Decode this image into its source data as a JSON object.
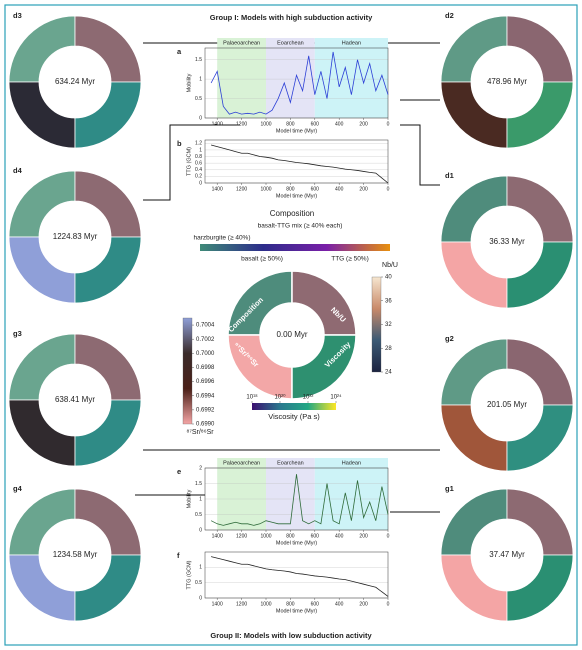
{
  "title_top": "Group I: Models with high subduction activity",
  "title_bottom": "Group II: Models with low subduction activity",
  "rings": [
    {
      "label": "d3",
      "time": "634.24 Myr",
      "colors": [
        "#6aa58f",
        "#8d6a72",
        "#2b2a35",
        "#2f8b86"
      ]
    },
    {
      "label": "d2",
      "time": "478.96 Myr",
      "colors": [
        "#5f9a86",
        "#8a6670",
        "#4a2a22",
        "#3a9a6a"
      ]
    },
    {
      "label": "d4",
      "time": "1224.83 Myr",
      "colors": [
        "#6aa58f",
        "#8d6a72",
        "#8f9fd8",
        "#2f8b86"
      ]
    },
    {
      "label": "d1",
      "time": "36.33 Myr",
      "colors": [
        "#4f8c7c",
        "#8d6a72",
        "#f4a5a5",
        "#2a8f72"
      ]
    },
    {
      "label": "g3",
      "time": "638.41 Myr",
      "colors": [
        "#6aa58f",
        "#8d6a72",
        "#302a2e",
        "#2f8b86"
      ]
    },
    {
      "label": "g2",
      "time": "201.05 Myr",
      "colors": [
        "#5f9a86",
        "#8a6670",
        "#a0563a",
        "#2f8f80"
      ]
    },
    {
      "label": "g4",
      "time": "1234.58 Myr",
      "colors": [
        "#6aa58f",
        "#8d6a72",
        "#8f9fd8",
        "#2f8b86"
      ]
    },
    {
      "label": "g1",
      "time": "37.47 Myr",
      "colors": [
        "#4f8c7c",
        "#8d6a72",
        "#f4a5a5",
        "#2a8f72"
      ]
    }
  ],
  "center": {
    "time": "0.00 Myr",
    "quadrants": [
      "Composition",
      "Nb/U",
      "⁸⁷Sr/⁸⁶Sr",
      "Viscosity"
    ],
    "colors": [
      "#4e8c7c",
      "#8f6a72",
      "#f3a7a7",
      "#2e9070"
    ]
  },
  "composition_legend": {
    "title": "Composition",
    "items": [
      {
        "name": "harzburgite (≥ 40%)",
        "color": "#3f8a78"
      },
      {
        "name": "basalt-TTG mix (≥ 40% each)",
        "color": "#2c2c8a"
      },
      {
        "name": "basalt (≥ 50%)",
        "color": "#7a1fa8"
      },
      {
        "name": "TTG (≥ 50%)",
        "color": "#e8900e"
      }
    ]
  },
  "nbu_colorbar": {
    "label": "Nb/U",
    "lim": [
      24,
      40
    ],
    "ticks": [
      40,
      36,
      32,
      28,
      24
    ],
    "colors": [
      "#1c2340",
      "#3b5a75",
      "#c98a6a",
      "#f6e6d0"
    ]
  },
  "sr_colorbar": {
    "label": "⁸⁷Sr/⁸⁶Sr",
    "lim": [
      0.699,
      0.7005
    ],
    "ticks": [
      0.7004,
      0.7002,
      {
        "value": 0.7,
        "label": "0.7000"
      },
      0.6998,
      0.6996,
      0.6994,
      0.6992,
      {
        "value": 0.699,
        "label": "0.6990"
      }
    ],
    "colors": [
      "#f4a5a5",
      "#4a2018",
      "#3a2b2a",
      "#8f9fd8"
    ]
  },
  "viscosity_colorbar": {
    "label": "Viscosity (Pa s)",
    "log": true,
    "lim": [
      1e+18,
      1e+24
    ],
    "ticks": [
      {
        "value": 1e+18,
        "label": "10¹⁸"
      },
      {
        "value": 1e+20,
        "label": "10²⁰"
      },
      {
        "value": 1e+22,
        "label": "10²²"
      },
      {
        "value": 1e+24,
        "label": "10²⁴"
      }
    ],
    "colors": [
      "#3b0f6f",
      "#2a788e",
      "#22a884",
      "#fde725"
    ]
  },
  "chart_data": [
    {
      "type": "line",
      "panel": "a",
      "ylabel": "Mobility",
      "xlabel": "Model time (Myr)",
      "color": "#2c3fd6",
      "eras": [
        {
          "name": "Palaeoarchean",
          "start": 1400,
          "end": 1000,
          "color": "#d9f2d6"
        },
        {
          "name": "Eoarchean",
          "start": 1000,
          "end": 600,
          "color": "#e4e4f6"
        },
        {
          "name": "Hadean",
          "start": 600,
          "end": 0,
          "color": "#cdf3f7"
        }
      ],
      "x": [
        1450,
        1400,
        1350,
        1300,
        1250,
        1200,
        1150,
        1100,
        1050,
        1000,
        950,
        900,
        850,
        800,
        750,
        700,
        650,
        600,
        550,
        500,
        450,
        400,
        350,
        300,
        250,
        200,
        150,
        100,
        50,
        0
      ],
      "values": [
        0.9,
        1.2,
        0.3,
        0.1,
        0.15,
        0.1,
        0.12,
        0.1,
        0.15,
        0.1,
        0.2,
        0.5,
        0.9,
        0.4,
        1.1,
        0.7,
        1.6,
        0.6,
        1.2,
        0.5,
        1.7,
        0.8,
        1.3,
        0.6,
        1.5,
        0.9,
        1.4,
        0.7,
        1.1,
        0.6
      ],
      "xlim": [
        1500,
        0
      ],
      "xticks": [
        1400,
        1200,
        1000,
        800,
        600,
        400,
        200,
        0
      ],
      "ylim": [
        0,
        1.8
      ],
      "yticks": [
        0,
        0.5,
        1,
        1.5
      ]
    },
    {
      "type": "line",
      "panel": "b",
      "ylabel": "TTG (GCM)",
      "xlabel": "Model time (Myr)",
      "color": "#222222",
      "x": [
        1450,
        1400,
        1350,
        1300,
        1250,
        1200,
        1150,
        1100,
        1050,
        1000,
        950,
        900,
        850,
        800,
        750,
        700,
        650,
        600,
        550,
        500,
        450,
        400,
        350,
        300,
        250,
        200,
        150,
        100,
        50,
        0
      ],
      "values": [
        1.15,
        1.1,
        1.05,
        1.0,
        0.95,
        0.9,
        0.9,
        0.85,
        0.8,
        0.78,
        0.75,
        0.7,
        0.68,
        0.65,
        0.62,
        0.6,
        0.58,
        0.55,
        0.52,
        0.5,
        0.48,
        0.45,
        0.42,
        0.4,
        0.38,
        0.35,
        0.32,
        0.3,
        0.15,
        0
      ],
      "xlim": [
        1500,
        0
      ],
      "xticks": [
        1400,
        1200,
        1000,
        800,
        600,
        400,
        200,
        0
      ],
      "ylim": [
        0,
        1.3
      ],
      "yticks": [
        0,
        0.2,
        0.4,
        0.6,
        0.8,
        1,
        1.2
      ]
    },
    {
      "type": "line",
      "panel": "e",
      "ylabel": "Mobility",
      "xlabel": "Model time (Myr)",
      "color": "#2f6b3a",
      "eras": [
        {
          "name": "Palaeoarchean",
          "start": 1400,
          "end": 1000,
          "color": "#d9f2d6"
        },
        {
          "name": "Eoarchean",
          "start": 1000,
          "end": 600,
          "color": "#e4e4f6"
        },
        {
          "name": "Hadean",
          "start": 600,
          "end": 0,
          "color": "#cdf3f7"
        }
      ],
      "x": [
        1450,
        1400,
        1350,
        1300,
        1250,
        1200,
        1150,
        1100,
        1050,
        1000,
        950,
        900,
        850,
        800,
        750,
        700,
        650,
        600,
        550,
        500,
        450,
        400,
        350,
        300,
        250,
        200,
        150,
        100,
        50,
        0
      ],
      "values": [
        0.3,
        0.2,
        0.15,
        0.2,
        0.25,
        0.2,
        0.2,
        0.15,
        0.2,
        0.3,
        0.25,
        0.2,
        0.2,
        0.2,
        1.8,
        0.3,
        0.2,
        0.3,
        0.2,
        1.5,
        0.3,
        0.2,
        1.2,
        0.3,
        1.6,
        0.4,
        0.9,
        0.3,
        1.4,
        0.5
      ],
      "xlim": [
        1500,
        0
      ],
      "xticks": [
        1400,
        1200,
        1000,
        800,
        600,
        400,
        200,
        0
      ],
      "ylim": [
        0,
        2
      ],
      "yticks": [
        0,
        0.5,
        1,
        1.5,
        2
      ]
    },
    {
      "type": "line",
      "panel": "f",
      "ylabel": "TTG (GCM)",
      "xlabel": "Model time (Myr)",
      "color": "#222222",
      "x": [
        1450,
        1400,
        1350,
        1300,
        1250,
        1200,
        1150,
        1100,
        1050,
        1000,
        950,
        900,
        850,
        800,
        750,
        700,
        650,
        600,
        550,
        500,
        450,
        400,
        350,
        300,
        250,
        200,
        150,
        100,
        50,
        0
      ],
      "values": [
        1.35,
        1.3,
        1.25,
        1.2,
        1.15,
        1.1,
        1.1,
        1.05,
        1.0,
        0.95,
        0.92,
        0.9,
        0.88,
        0.85,
        0.8,
        0.78,
        0.75,
        0.72,
        0.7,
        0.68,
        0.65,
        0.62,
        0.6,
        0.55,
        0.5,
        0.45,
        0.4,
        0.35,
        0.2,
        0.05
      ],
      "xlim": [
        1500,
        0
      ],
      "xticks": [
        1400,
        1200,
        1000,
        800,
        600,
        400,
        200,
        0
      ],
      "ylim": [
        0,
        1.5
      ],
      "yticks": [
        0,
        0.5,
        1
      ]
    }
  ]
}
